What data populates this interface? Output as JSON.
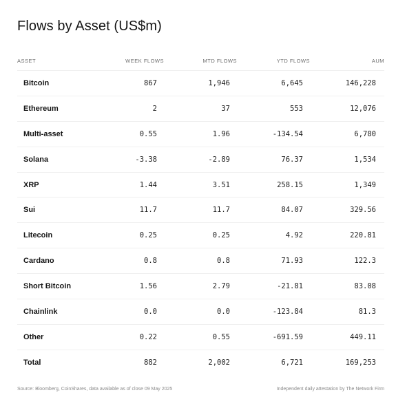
{
  "title": "Flows by Asset (US$m)",
  "chart_data": {
    "type": "table",
    "title": "Flows by Asset (US$m)",
    "columns": [
      "ASSET",
      "WEEK FLOWS",
      "MTD FLOWS",
      "YTD FLOWS",
      "AUM"
    ],
    "rows": [
      [
        "Bitcoin",
        "867",
        "1,946",
        "6,645",
        "146,228"
      ],
      [
        "Ethereum",
        "2",
        "37",
        "553",
        "12,076"
      ],
      [
        "Multi-asset",
        "0.55",
        "1.96",
        "-134.54",
        "6,780"
      ],
      [
        "Solana",
        "-3.38",
        "-2.89",
        "76.37",
        "1,534"
      ],
      [
        "XRP",
        "1.44",
        "3.51",
        "258.15",
        "1,349"
      ],
      [
        "Sui",
        "11.7",
        "11.7",
        "84.07",
        "329.56"
      ],
      [
        "Litecoin",
        "0.25",
        "0.25",
        "4.92",
        "220.81"
      ],
      [
        "Cardano",
        "0.8",
        "0.8",
        "71.93",
        "122.3"
      ],
      [
        "Short Bitcoin",
        "1.56",
        "2.79",
        "-21.81",
        "83.08"
      ],
      [
        "Chainlink",
        "0.0",
        "0.0",
        "-123.84",
        "81.3"
      ],
      [
        "Other",
        "0.22",
        "0.55",
        "-691.59",
        "449.11"
      ],
      [
        "Total",
        "882",
        "2,002",
        "6,721",
        "169,253"
      ]
    ]
  },
  "footer": {
    "source": "Source: Bloomberg, CoinShares, data available as of close 09 May 2025",
    "attestation": "Independent daily attestation by The Network Firm"
  }
}
